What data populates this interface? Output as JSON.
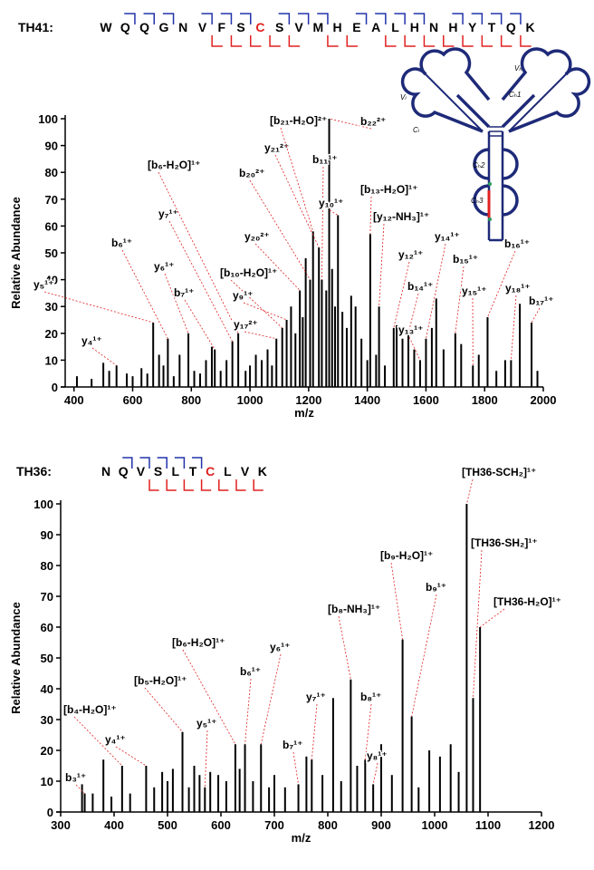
{
  "chart_data": [
    {
      "type": "spectrum",
      "title": "TH41:",
      "sequence": [
        "W",
        "Q",
        "Q",
        "G",
        "N",
        "V",
        "F",
        "S",
        "C",
        "S",
        "V",
        "M",
        "H",
        "E",
        "A",
        "L",
        "H",
        "N",
        "H",
        "Y",
        "T",
        "Q",
        "K"
      ],
      "highlight_index": 8,
      "highlight_color": "#e02020",
      "b_cleavage_after": [
        2,
        3,
        4,
        6,
        7,
        8,
        10,
        11,
        12,
        14,
        15,
        16,
        17,
        19,
        20,
        21,
        22
      ],
      "y_cleavage_after": [
        6,
        7,
        8,
        9,
        10,
        12,
        13,
        15,
        16,
        17,
        18,
        19,
        20,
        21,
        22
      ],
      "b_color": "#2233aa",
      "y_color": "#e02020",
      "xlabel": "m/z",
      "ylabel": "Relative Abundance",
      "color": "#000000",
      "annotation_color": "#e02020",
      "xlim": [
        370,
        2000
      ],
      "ylim": [
        0,
        100
      ],
      "xticks": [
        400,
        600,
        800,
        1000,
        1200,
        1400,
        1600,
        1800,
        2000
      ],
      "yticks": [
        0,
        10,
        20,
        30,
        40,
        50,
        60,
        70,
        80,
        90,
        100
      ],
      "x": [
        410,
        460,
        500,
        520,
        545,
        580,
        600,
        630,
        650,
        670,
        690,
        705,
        720,
        740,
        760,
        790,
        810,
        830,
        850,
        870,
        880,
        900,
        920,
        940,
        960,
        985,
        1000,
        1020,
        1040,
        1060,
        1075,
        1090,
        1110,
        1125,
        1140,
        1155,
        1170,
        1180,
        1190,
        1205,
        1215,
        1235,
        1245,
        1260,
        1270,
        1280,
        1290,
        1300,
        1315,
        1330,
        1345,
        1360,
        1380,
        1400,
        1410,
        1430,
        1440,
        1460,
        1490,
        1500,
        1520,
        1540,
        1560,
        1580,
        1600,
        1620,
        1635,
        1660,
        1700,
        1720,
        1760,
        1780,
        1810,
        1840,
        1870,
        1890,
        1920,
        1960,
        1980
      ],
      "values": [
        4,
        3,
        9,
        6,
        8,
        5,
        4,
        7,
        5,
        24,
        12,
        8,
        18,
        4,
        12,
        20,
        6,
        5,
        10,
        15,
        14,
        6,
        10,
        17,
        20,
        6,
        8,
        12,
        10,
        14,
        8,
        18,
        22,
        25,
        30,
        20,
        36,
        26,
        48,
        40,
        58,
        52,
        40,
        36,
        100,
        44,
        30,
        64,
        28,
        22,
        34,
        30,
        18,
        10,
        57,
        12,
        30,
        8,
        22,
        23,
        18,
        20,
        14,
        10,
        18,
        22,
        33,
        14,
        20,
        16,
        8,
        12,
        26,
        6,
        10,
        10,
        31,
        24,
        6
      ],
      "annotations": [
        {
          "label": "y₄¹⁺",
          "x": 545,
          "y": 8
        },
        {
          "label": "y₅¹⁺",
          "x": 670,
          "y": 24
        },
        {
          "label": "b₆¹⁺",
          "x": 720,
          "y": 18
        },
        {
          "label": "y₆¹⁺",
          "x": 790,
          "y": 20
        },
        {
          "label": "b₇¹⁺",
          "x": 880,
          "y": 14
        },
        {
          "label": "y₇¹⁺",
          "x": 940,
          "y": 17
        },
        {
          "label": "[b₆-H₂O]¹⁺",
          "x": 960,
          "y": 20
        },
        {
          "label": "[b₁₀-H₂O]¹⁺",
          "x": 1110,
          "y": 22
        },
        {
          "label": "y₉¹⁺",
          "x": 1125,
          "y": 25
        },
        {
          "label": "y₁₇²⁺",
          "x": 1090,
          "y": 18
        },
        {
          "label": "b₂₀²⁺",
          "x": 1205,
          "y": 40
        },
        {
          "label": "y₂₀²⁺",
          "x": 1170,
          "y": 36
        },
        {
          "label": "y₂₁²⁺",
          "x": 1235,
          "y": 52
        },
        {
          "label": "[b₂₁-H₂O]²⁺",
          "x": 1215,
          "y": 58
        },
        {
          "label": "b₁₁¹⁺",
          "x": 1245,
          "y": 40
        },
        {
          "label": "y₁₀¹⁺",
          "x": 1300,
          "y": 64
        },
        {
          "label": "b₂₂²⁺",
          "x": 1270,
          "y": 100
        },
        {
          "label": "[b₁₃-H₂O]¹⁺",
          "x": 1410,
          "y": 57
        },
        {
          "label": "[y₁₂-NH₃]¹⁺",
          "x": 1440,
          "y": 30
        },
        {
          "label": "y₁₂¹⁺",
          "x": 1490,
          "y": 22
        },
        {
          "label": "b₁₄¹⁺",
          "x": 1540,
          "y": 20
        },
        {
          "label": "y₁₃¹⁺",
          "x": 1580,
          "y": 10
        },
        {
          "label": "y₁₄¹⁺",
          "x": 1600,
          "y": 18
        },
        {
          "label": "b₁₅¹⁺",
          "x": 1700,
          "y": 20
        },
        {
          "label": "y₁₅¹⁺",
          "x": 1760,
          "y": 8
        },
        {
          "label": "b₁₆¹⁺",
          "x": 1810,
          "y": 26
        },
        {
          "label": "y₁₈¹⁺",
          "x": 1890,
          "y": 10
        },
        {
          "label": "b₁₇¹⁺",
          "x": 1960,
          "y": 24
        }
      ]
    },
    {
      "type": "spectrum",
      "title": "TH36:",
      "sequence": [
        "N",
        "Q",
        "V",
        "S",
        "L",
        "T",
        "C",
        "L",
        "V",
        "K"
      ],
      "highlight_index": 6,
      "highlight_color": "#e02020",
      "b_cleavage_after": [
        2,
        3,
        4,
        5,
        6
      ],
      "y_cleavage_after": [
        3,
        4,
        5,
        6,
        7,
        8,
        9
      ],
      "b_color": "#2233aa",
      "y_color": "#e02020",
      "xlabel": "m/z",
      "ylabel": "Relative Abundance",
      "color": "#000000",
      "annotation_color": "#e02020",
      "xlim": [
        300,
        1200
      ],
      "ylim": [
        0,
        100
      ],
      "xticks": [
        300,
        400,
        500,
        600,
        700,
        800,
        900,
        1000,
        1100,
        1200
      ],
      "yticks": [
        0,
        10,
        20,
        30,
        40,
        50,
        60,
        70,
        80,
        90,
        100
      ],
      "x": [
        340,
        345,
        360,
        380,
        395,
        415,
        430,
        460,
        475,
        490,
        500,
        510,
        528,
        540,
        550,
        560,
        570,
        580,
        595,
        610,
        627,
        635,
        645,
        660,
        675,
        690,
        700,
        720,
        745,
        760,
        770,
        790,
        810,
        825,
        843,
        855,
        870,
        885,
        900,
        920,
        940,
        957,
        970,
        990,
        1010,
        1030,
        1045,
        1060,
        1072,
        1085
      ],
      "values": [
        9,
        6,
        6,
        17,
        5,
        15,
        6,
        15,
        8,
        13,
        10,
        14,
        26,
        8,
        15,
        12,
        8,
        13,
        12,
        10,
        22,
        14,
        22,
        10,
        22,
        8,
        12,
        8,
        9,
        18,
        17,
        12,
        37,
        10,
        43,
        15,
        17,
        9,
        22,
        12,
        56,
        31,
        8,
        20,
        18,
        22,
        13,
        100,
        37,
        60
      ],
      "annotations": [
        {
          "label": "b₃¹⁺",
          "x": 345,
          "y": 6
        },
        {
          "label": "[b₄-H₂O]¹⁺",
          "x": 415,
          "y": 15
        },
        {
          "label": "y₄¹⁺",
          "x": 460,
          "y": 15
        },
        {
          "label": "[b₅-H₂O]¹⁺",
          "x": 528,
          "y": 26
        },
        {
          "label": "y₅¹⁺",
          "x": 570,
          "y": 8
        },
        {
          "label": "[b₆-H₂O]¹⁺",
          "x": 627,
          "y": 22
        },
        {
          "label": "b₆¹⁺",
          "x": 645,
          "y": 22
        },
        {
          "label": "y₆¹⁺",
          "x": 675,
          "y": 22
        },
        {
          "label": "b₇¹⁺",
          "x": 745,
          "y": 9
        },
        {
          "label": "y₇¹⁺",
          "x": 770,
          "y": 17
        },
        {
          "label": "[b₈-NH₃]¹⁺",
          "x": 843,
          "y": 43
        },
        {
          "label": "b₈¹⁺",
          "x": 870,
          "y": 17
        },
        {
          "label": "y₈¹⁺",
          "x": 885,
          "y": 9
        },
        {
          "label": "[b₉-H₂O]¹⁺",
          "x": 940,
          "y": 56
        },
        {
          "label": "b₉¹⁺",
          "x": 957,
          "y": 31
        },
        {
          "label": "[TH36-SCH₂]¹⁺",
          "x": 1060,
          "y": 100
        },
        {
          "label": "[TH36-SH₂]¹⁺",
          "x": 1072,
          "y": 37
        },
        {
          "label": "[TH36-H₂O]¹⁺",
          "x": 1085,
          "y": 60
        }
      ]
    }
  ],
  "antibody_labels": [
    "Vₕ",
    "Vₗ",
    "Cₕ1",
    "Cₗ",
    "Cₕ2",
    "Cₕ3"
  ]
}
